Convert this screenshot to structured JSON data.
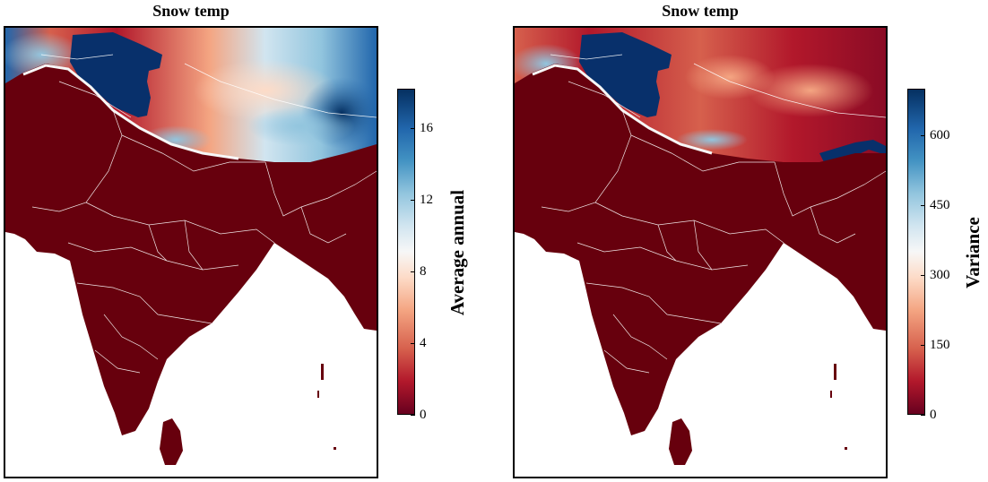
{
  "panels": [
    {
      "title": "Snow temp",
      "colorbar": {
        "label": "Average annual",
        "min": 0,
        "max": 18.2,
        "ticks": [
          "0",
          "4",
          "8",
          "12",
          "16"
        ],
        "tick_values": [
          0,
          4,
          8,
          12,
          16
        ]
      }
    },
    {
      "title": "Snow temp",
      "colorbar": {
        "label": "Variance",
        "min": 0,
        "max": 700,
        "ticks": [
          "0",
          "150",
          "300",
          "450",
          "600"
        ],
        "tick_values": [
          0,
          150,
          300,
          450,
          600
        ]
      }
    }
  ],
  "colormap": {
    "name": "RdBu",
    "stops": [
      "#67001f",
      "#b2182b",
      "#d6604d",
      "#f4a582",
      "#fddbc7",
      "#f7f7f7",
      "#d1e5f0",
      "#92c5de",
      "#4393c3",
      "#2166ac",
      "#053061"
    ]
  },
  "colors": {
    "land_low": "#67000d",
    "ocean": "#ffffff",
    "border": "#ffffff",
    "snow_high": "#08306b"
  }
}
